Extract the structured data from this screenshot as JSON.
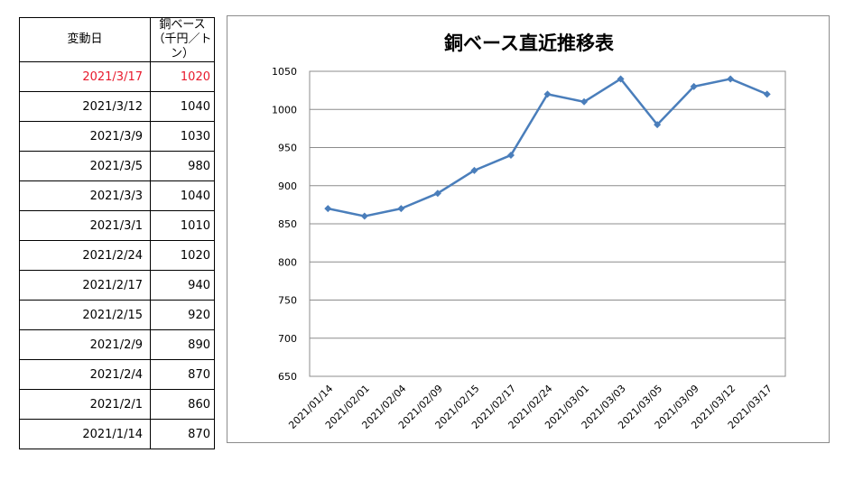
{
  "table": {
    "header_date": "変動日",
    "header_price_line1": "銅ベース",
    "header_price_line2": "（千円／トン）",
    "highlight_color": "#e8192c",
    "rows": [
      {
        "date": "2021/3/17",
        "price": "1020",
        "highlight": true
      },
      {
        "date": "2021/3/12",
        "price": "1040",
        "highlight": false
      },
      {
        "date": "2021/3/9",
        "price": "1030",
        "highlight": false
      },
      {
        "date": "2021/3/5",
        "price": "980",
        "highlight": false
      },
      {
        "date": "2021/3/3",
        "price": "1040",
        "highlight": false
      },
      {
        "date": "2021/3/1",
        "price": "1010",
        "highlight": false
      },
      {
        "date": "2021/2/24",
        "price": "1020",
        "highlight": false
      },
      {
        "date": "2021/2/17",
        "price": "940",
        "highlight": false
      },
      {
        "date": "2021/2/15",
        "price": "920",
        "highlight": false
      },
      {
        "date": "2021/2/9",
        "price": "890",
        "highlight": false
      },
      {
        "date": "2021/2/4",
        "price": "870",
        "highlight": false
      },
      {
        "date": "2021/2/1",
        "price": "860",
        "highlight": false
      },
      {
        "date": "2021/1/14",
        "price": "870",
        "highlight": false
      }
    ]
  },
  "chart_data": {
    "type": "line",
    "title": "銅ベース直近推移表",
    "xlabel": "",
    "ylabel": "",
    "categories": [
      "2021/01/14",
      "2021/02/01",
      "2021/02/04",
      "2021/02/09",
      "2021/02/15",
      "2021/02/17",
      "2021/02/24",
      "2021/03/01",
      "2021/03/03",
      "2021/03/05",
      "2021/03/09",
      "2021/03/12",
      "2021/03/17"
    ],
    "series": [
      {
        "values": [
          870,
          860,
          870,
          890,
          920,
          940,
          1020,
          1010,
          1040,
          980,
          1030,
          1040,
          1020
        ],
        "color": "#4a7ebb",
        "marker": "diamond"
      }
    ],
    "ylim": [
      650,
      1050
    ],
    "yticks": [
      650,
      700,
      750,
      800,
      850,
      900,
      950,
      1000,
      1050
    ],
    "grid": "horizontal",
    "legend": "none"
  }
}
